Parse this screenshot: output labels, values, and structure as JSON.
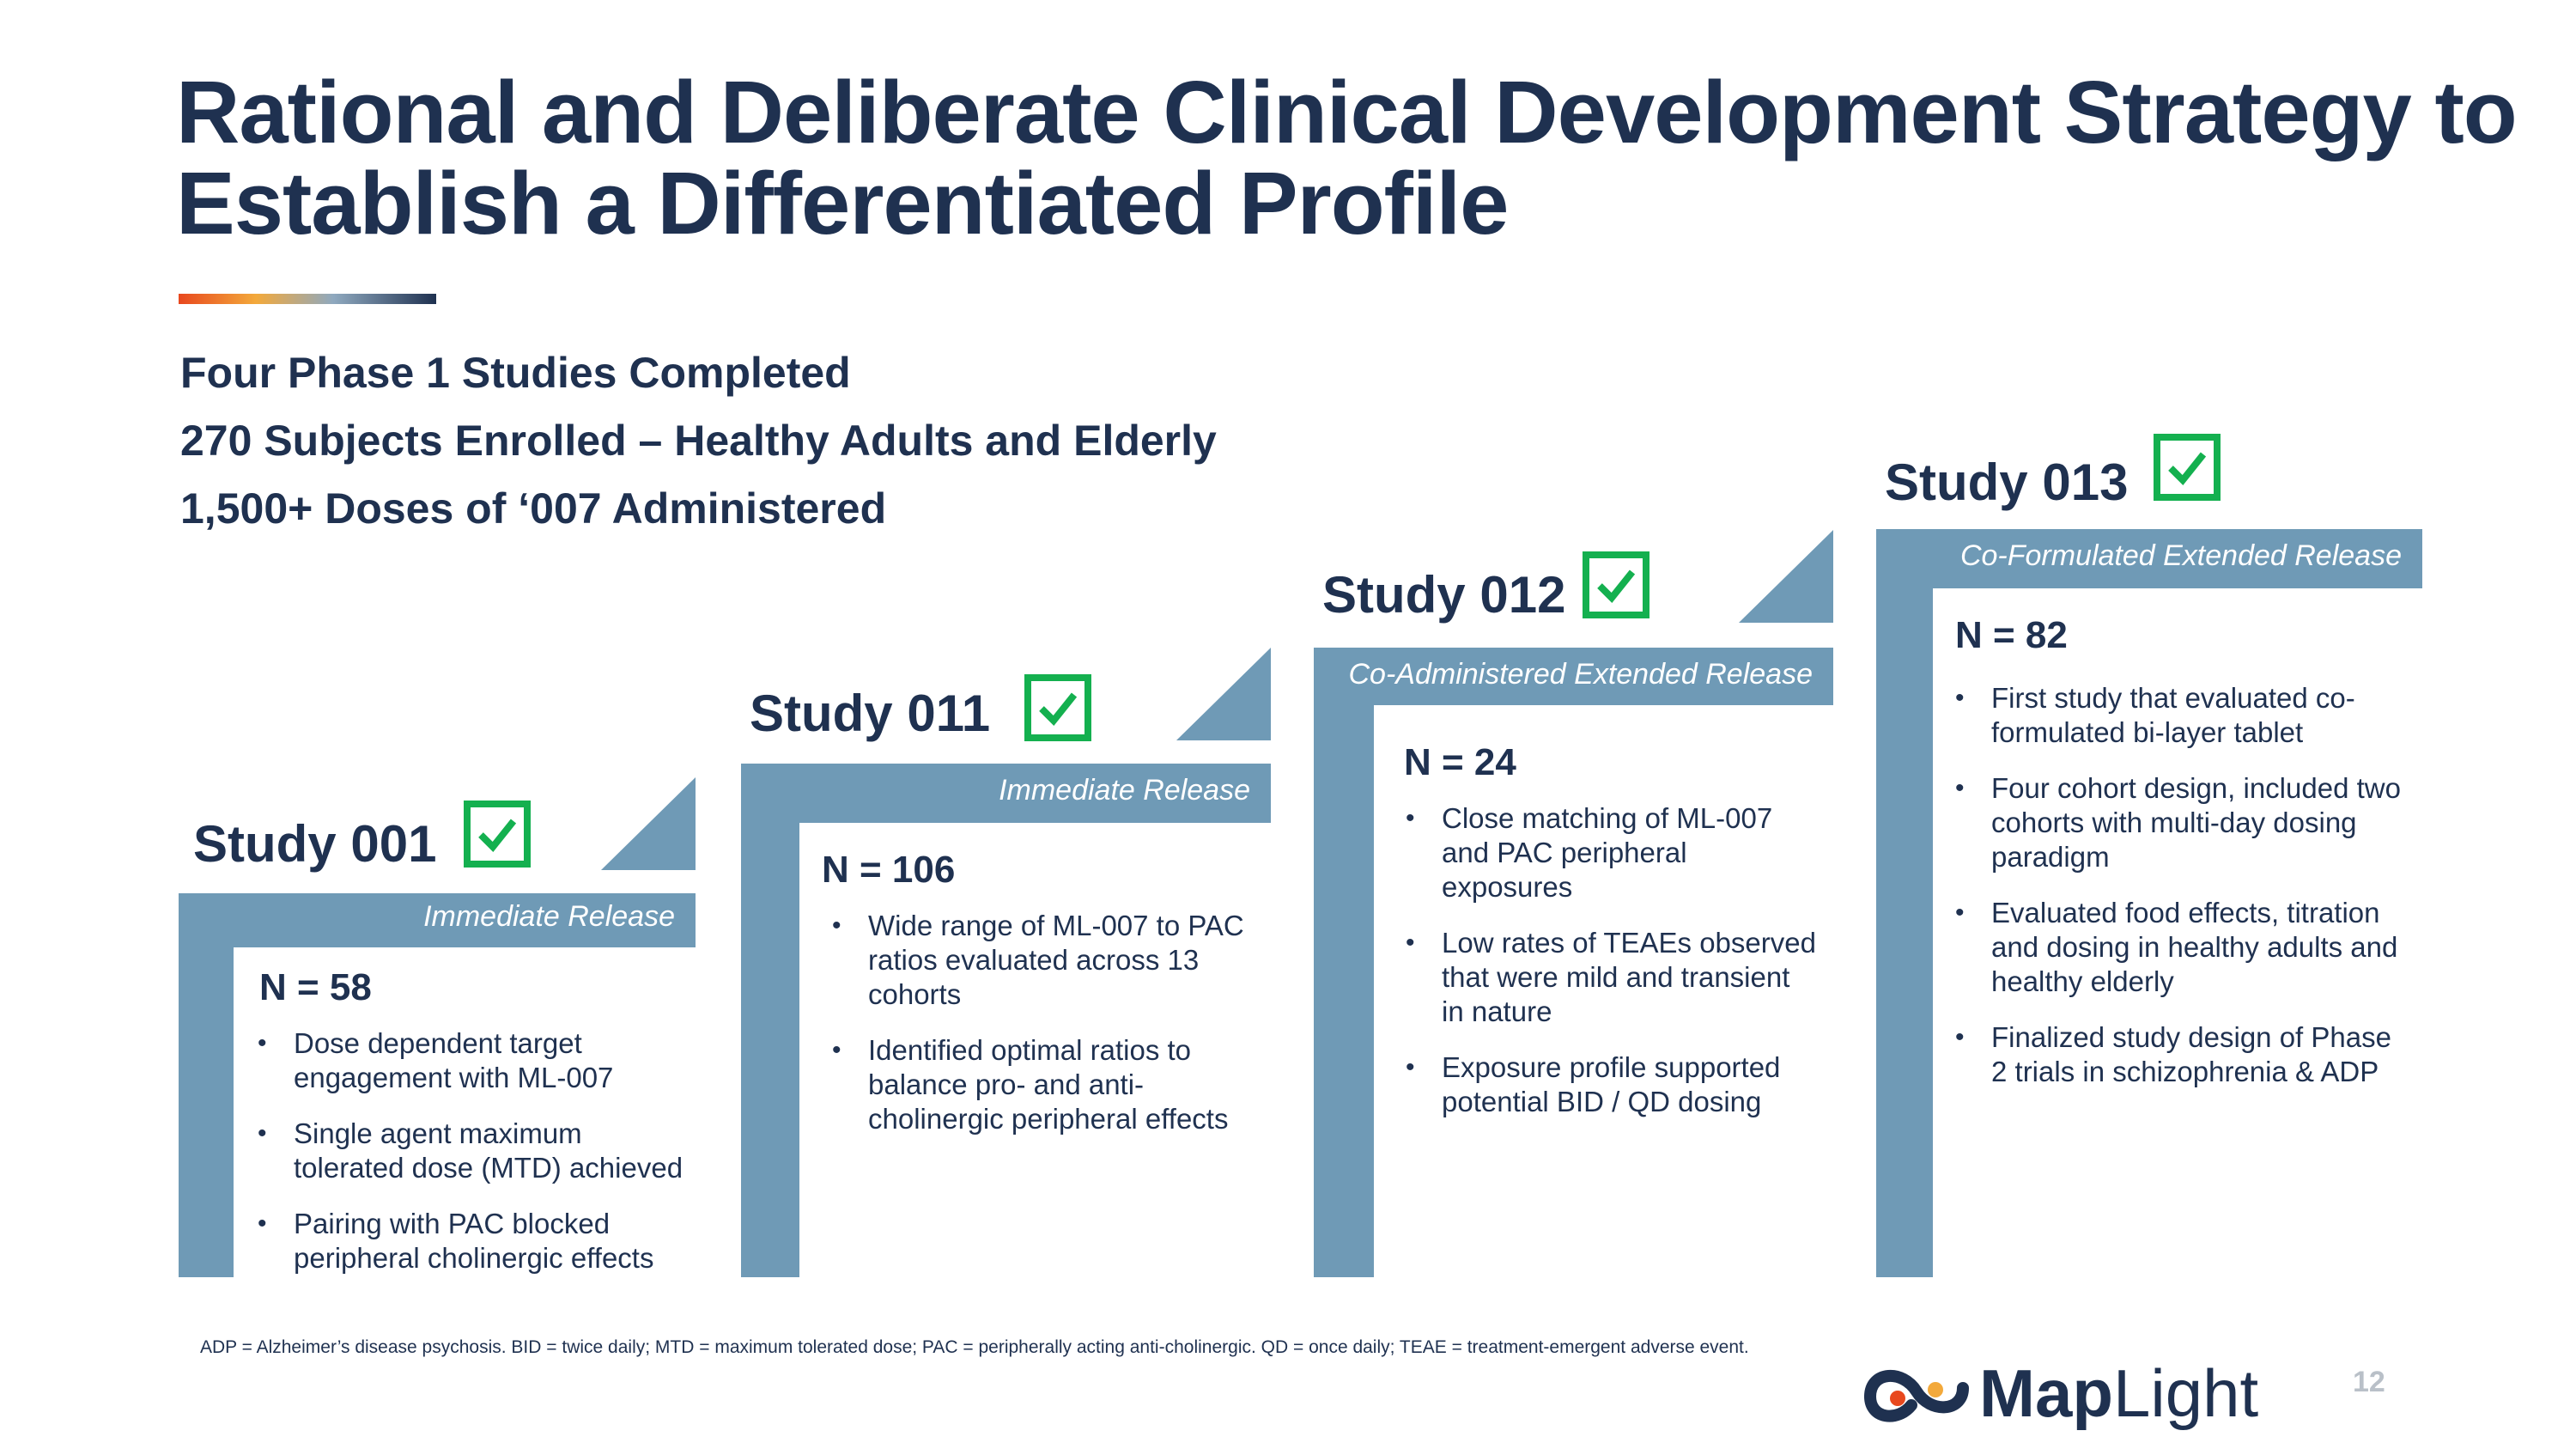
{
  "title": "Rational and Deliberate Clinical Development Strategy to Establish a Differentiated Profile",
  "summary": [
    "Four Phase 1 Studies Completed",
    "270 Subjects Enrolled – Healthy Adults and Elderly",
    "1,500+ Doses of ‘007 Administered"
  ],
  "studies": [
    {
      "name": "Study 001",
      "label": "Immediate Release",
      "n": "N = 58",
      "bullets": [
        "Dose dependent target engagement with ML-007",
        "Single agent maximum tolerated dose (MTD) achieved",
        "Pairing with PAC blocked peripheral cholinergic effects"
      ]
    },
    {
      "name": "Study 011",
      "label": "Immediate Release",
      "n": "N = 106",
      "bullets": [
        "Wide range of ML-007 to PAC ratios evaluated across 13 cohorts",
        "Identified optimal ratios to balance pro- and anti-cholinergic peripheral effects"
      ]
    },
    {
      "name": "Study 012",
      "label": "Co-Administered Extended Release",
      "n": "N = 24",
      "bullets": [
        "Close matching of ML-007 and PAC peripheral exposures",
        "Low rates of TEAEs observed that were mild and transient in nature",
        "Exposure profile supported potential BID / QD dosing"
      ]
    },
    {
      "name": "Study 013",
      "label": "Co-Formulated Extended Release",
      "n": "N = 82",
      "bullets": [
        "First study that evaluated co-formulated bi-layer tablet",
        "Four cohort design, included two cohorts with multi-day dosing paradigm",
        "Evaluated food effects, titration and dosing in healthy adults and healthy elderly",
        "Finalized study design of Phase 2 trials in schizophrenia & ADP"
      ]
    }
  ],
  "footnote": "ADP = Alzheimer’s disease psychosis. BID = twice daily; MTD = maximum tolerated dose; PAC = peripherally acting anti-cholinergic. QD = once daily; TEAE = treatment-emergent adverse event.",
  "logo": {
    "part1": "Map",
    "part2": "Light"
  },
  "page_number": "12",
  "colors": {
    "navy": "#1f3150",
    "steel": "#6f9ab6",
    "check": "#14b04f"
  }
}
